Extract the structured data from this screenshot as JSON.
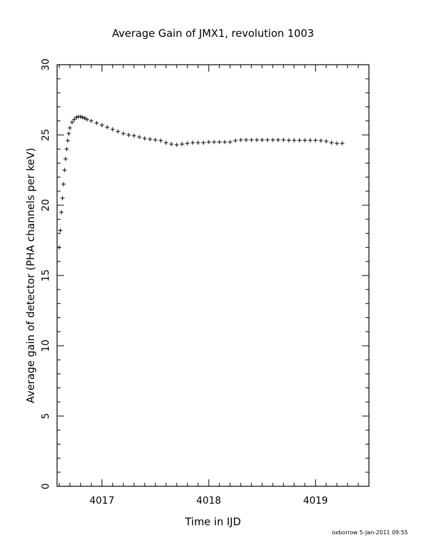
{
  "chart_data": {
    "type": "scatter",
    "title": "Average Gain of JMX1, revolution 1003",
    "xlabel": "Time in IJD",
    "ylabel": "Average gain of detector (PHA channels per keV)",
    "xlim": [
      4016.58,
      4019.5
    ],
    "ylim": [
      0,
      30
    ],
    "x_ticks": [
      4017,
      4018,
      4019
    ],
    "x_tick_labels": [
      "4017",
      "4018",
      "4019"
    ],
    "y_ticks": [
      0,
      5,
      10,
      15,
      20,
      25,
      30
    ],
    "y_tick_labels": [
      "0",
      "5",
      "10",
      "15",
      "20",
      "25",
      "30"
    ],
    "grid": false,
    "marker": "plus",
    "series": [
      {
        "x": [
          4016.6,
          4016.61,
          4016.62,
          4016.63,
          4016.64,
          4016.65,
          4016.66,
          4016.67,
          4016.68,
          4016.69,
          4016.7,
          4016.72,
          4016.74,
          4016.76,
          4016.78,
          4016.8,
          4016.82,
          4016.84,
          4016.86,
          4016.9,
          4016.95,
          4017.0,
          4017.05,
          4017.1,
          4017.15,
          4017.2,
          4017.25,
          4017.3,
          4017.35,
          4017.4,
          4017.45,
          4017.5,
          4017.55,
          4017.6,
          4017.65,
          4017.7,
          4017.75,
          4017.8,
          4017.85,
          4017.9,
          4017.95,
          4018.0,
          4018.05,
          4018.1,
          4018.15,
          4018.2,
          4018.25,
          4018.3,
          4018.35,
          4018.4,
          4018.45,
          4018.5,
          4018.55,
          4018.6,
          4018.65,
          4018.7,
          4018.75,
          4018.8,
          4018.85,
          4018.9,
          4018.95,
          4019.0,
          4019.05,
          4019.1,
          4019.15,
          4019.2,
          4019.25
        ],
        "y": [
          17.0,
          18.2,
          19.5,
          20.5,
          21.5,
          22.5,
          23.3,
          24.0,
          24.6,
          25.1,
          25.5,
          25.9,
          26.1,
          26.25,
          26.3,
          26.3,
          26.25,
          26.2,
          26.1,
          26.0,
          25.85,
          25.7,
          25.55,
          25.4,
          25.25,
          25.1,
          25.0,
          24.95,
          24.85,
          24.75,
          24.7,
          24.65,
          24.6,
          24.45,
          24.35,
          24.3,
          24.35,
          24.4,
          24.45,
          24.45,
          24.45,
          24.5,
          24.5,
          24.5,
          24.5,
          24.5,
          24.6,
          24.65,
          24.65,
          24.65,
          24.65,
          24.65,
          24.65,
          24.65,
          24.65,
          24.65,
          24.62,
          24.62,
          24.62,
          24.62,
          24.62,
          24.62,
          24.6,
          24.55,
          24.45,
          24.4,
          24.4
        ]
      }
    ]
  },
  "footer_text": "oxborrow  5-Jan-2011 09:55"
}
